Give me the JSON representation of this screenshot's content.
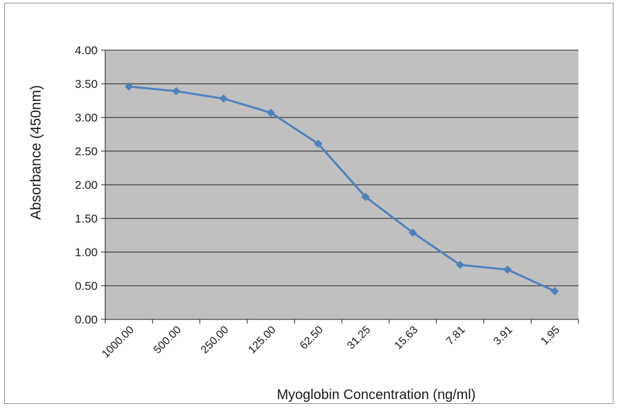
{
  "chart_data": {
    "type": "line",
    "xlabel": "Myoglobin Concentration (ng/ml)",
    "ylabel": "Absorbance (450nm)",
    "categories": [
      "1000.00",
      "500.00",
      "250.00",
      "125.00",
      "62.50",
      "31.25",
      "15.63",
      "7.81",
      "3.91",
      "1.95"
    ],
    "yticks": [
      "0.00",
      "0.50",
      "1.00",
      "1.50",
      "2.00",
      "2.50",
      "3.00",
      "3.50",
      "4.00"
    ],
    "ylim": [
      0,
      4
    ],
    "grid": true,
    "series": [
      {
        "values": [
          3.46,
          3.39,
          3.28,
          3.07,
          2.61,
          1.82,
          1.29,
          0.81,
          0.74,
          0.42
        ]
      }
    ],
    "colors": {
      "line": "#4f81bd",
      "plot_bg": "#c0c0c0",
      "grid": "#1a1a1a"
    }
  }
}
